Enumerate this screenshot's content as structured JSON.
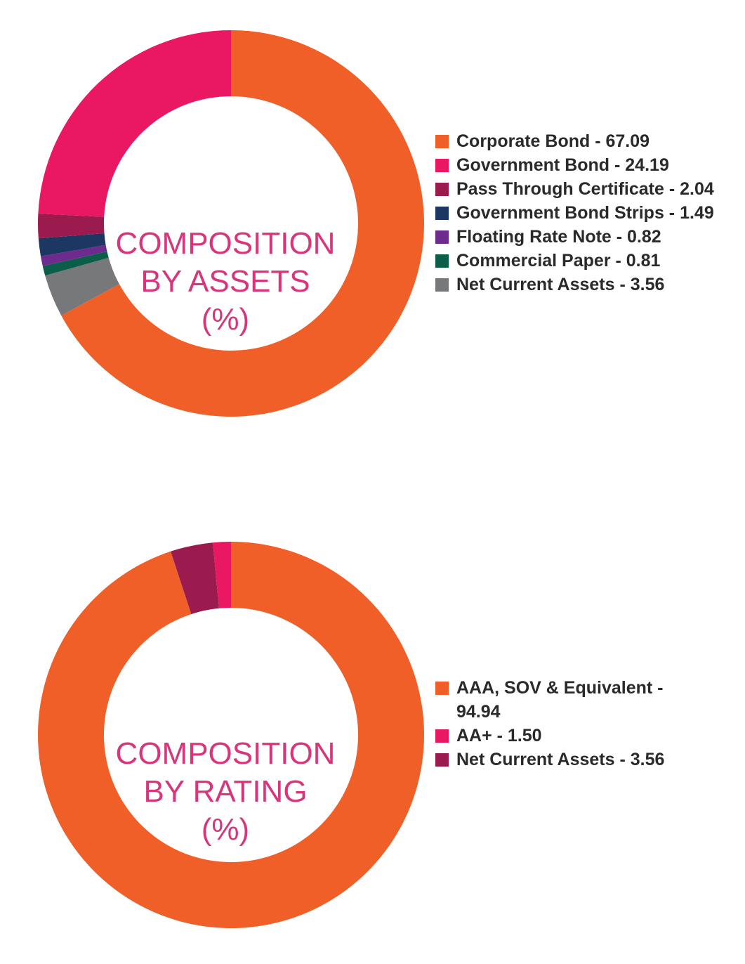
{
  "chart_data": [
    {
      "type": "pie",
      "title_lines": [
        "COMPOSITION",
        "BY ASSETS",
        "(%)"
      ],
      "slices": [
        {
          "label": "Corporate Bond - 67.09",
          "value": 67.09,
          "color": "#f05f28"
        },
        {
          "label": "Government Bond - 24.19",
          "value": 24.19,
          "color": "#ea1762"
        },
        {
          "label": "Pass Through Certificate - 2.04",
          "value": 2.04,
          "color": "#9b1b4e"
        },
        {
          "label": "Government Bond Strips - 1.49",
          "value": 1.49,
          "color": "#1c3862"
        },
        {
          "label": "Floating Rate Note - 0.82",
          "value": 0.82,
          "color": "#6d2b8e"
        },
        {
          "label": "Commercial Paper - 0.81",
          "value": 0.81,
          "color": "#0a5e4a"
        },
        {
          "label": "Net Current Assets - 3.56",
          "value": 3.56,
          "color": "#77787a"
        }
      ],
      "legend_position": "right"
    },
    {
      "type": "pie",
      "title_lines": [
        "COMPOSITION",
        "BY RATING",
        "(%)"
      ],
      "slices": [
        {
          "label": "AAA, SOV & Equivalent - 94.94",
          "value": 94.94,
          "color": "#f05f28"
        },
        {
          "label": "AA+ - 1.50",
          "value": 1.5,
          "color": "#ea1762"
        },
        {
          "label": "Net Current Assets - 3.56",
          "value": 3.56,
          "color": "#9b1b4e"
        }
      ],
      "legend_position": "right"
    }
  ]
}
